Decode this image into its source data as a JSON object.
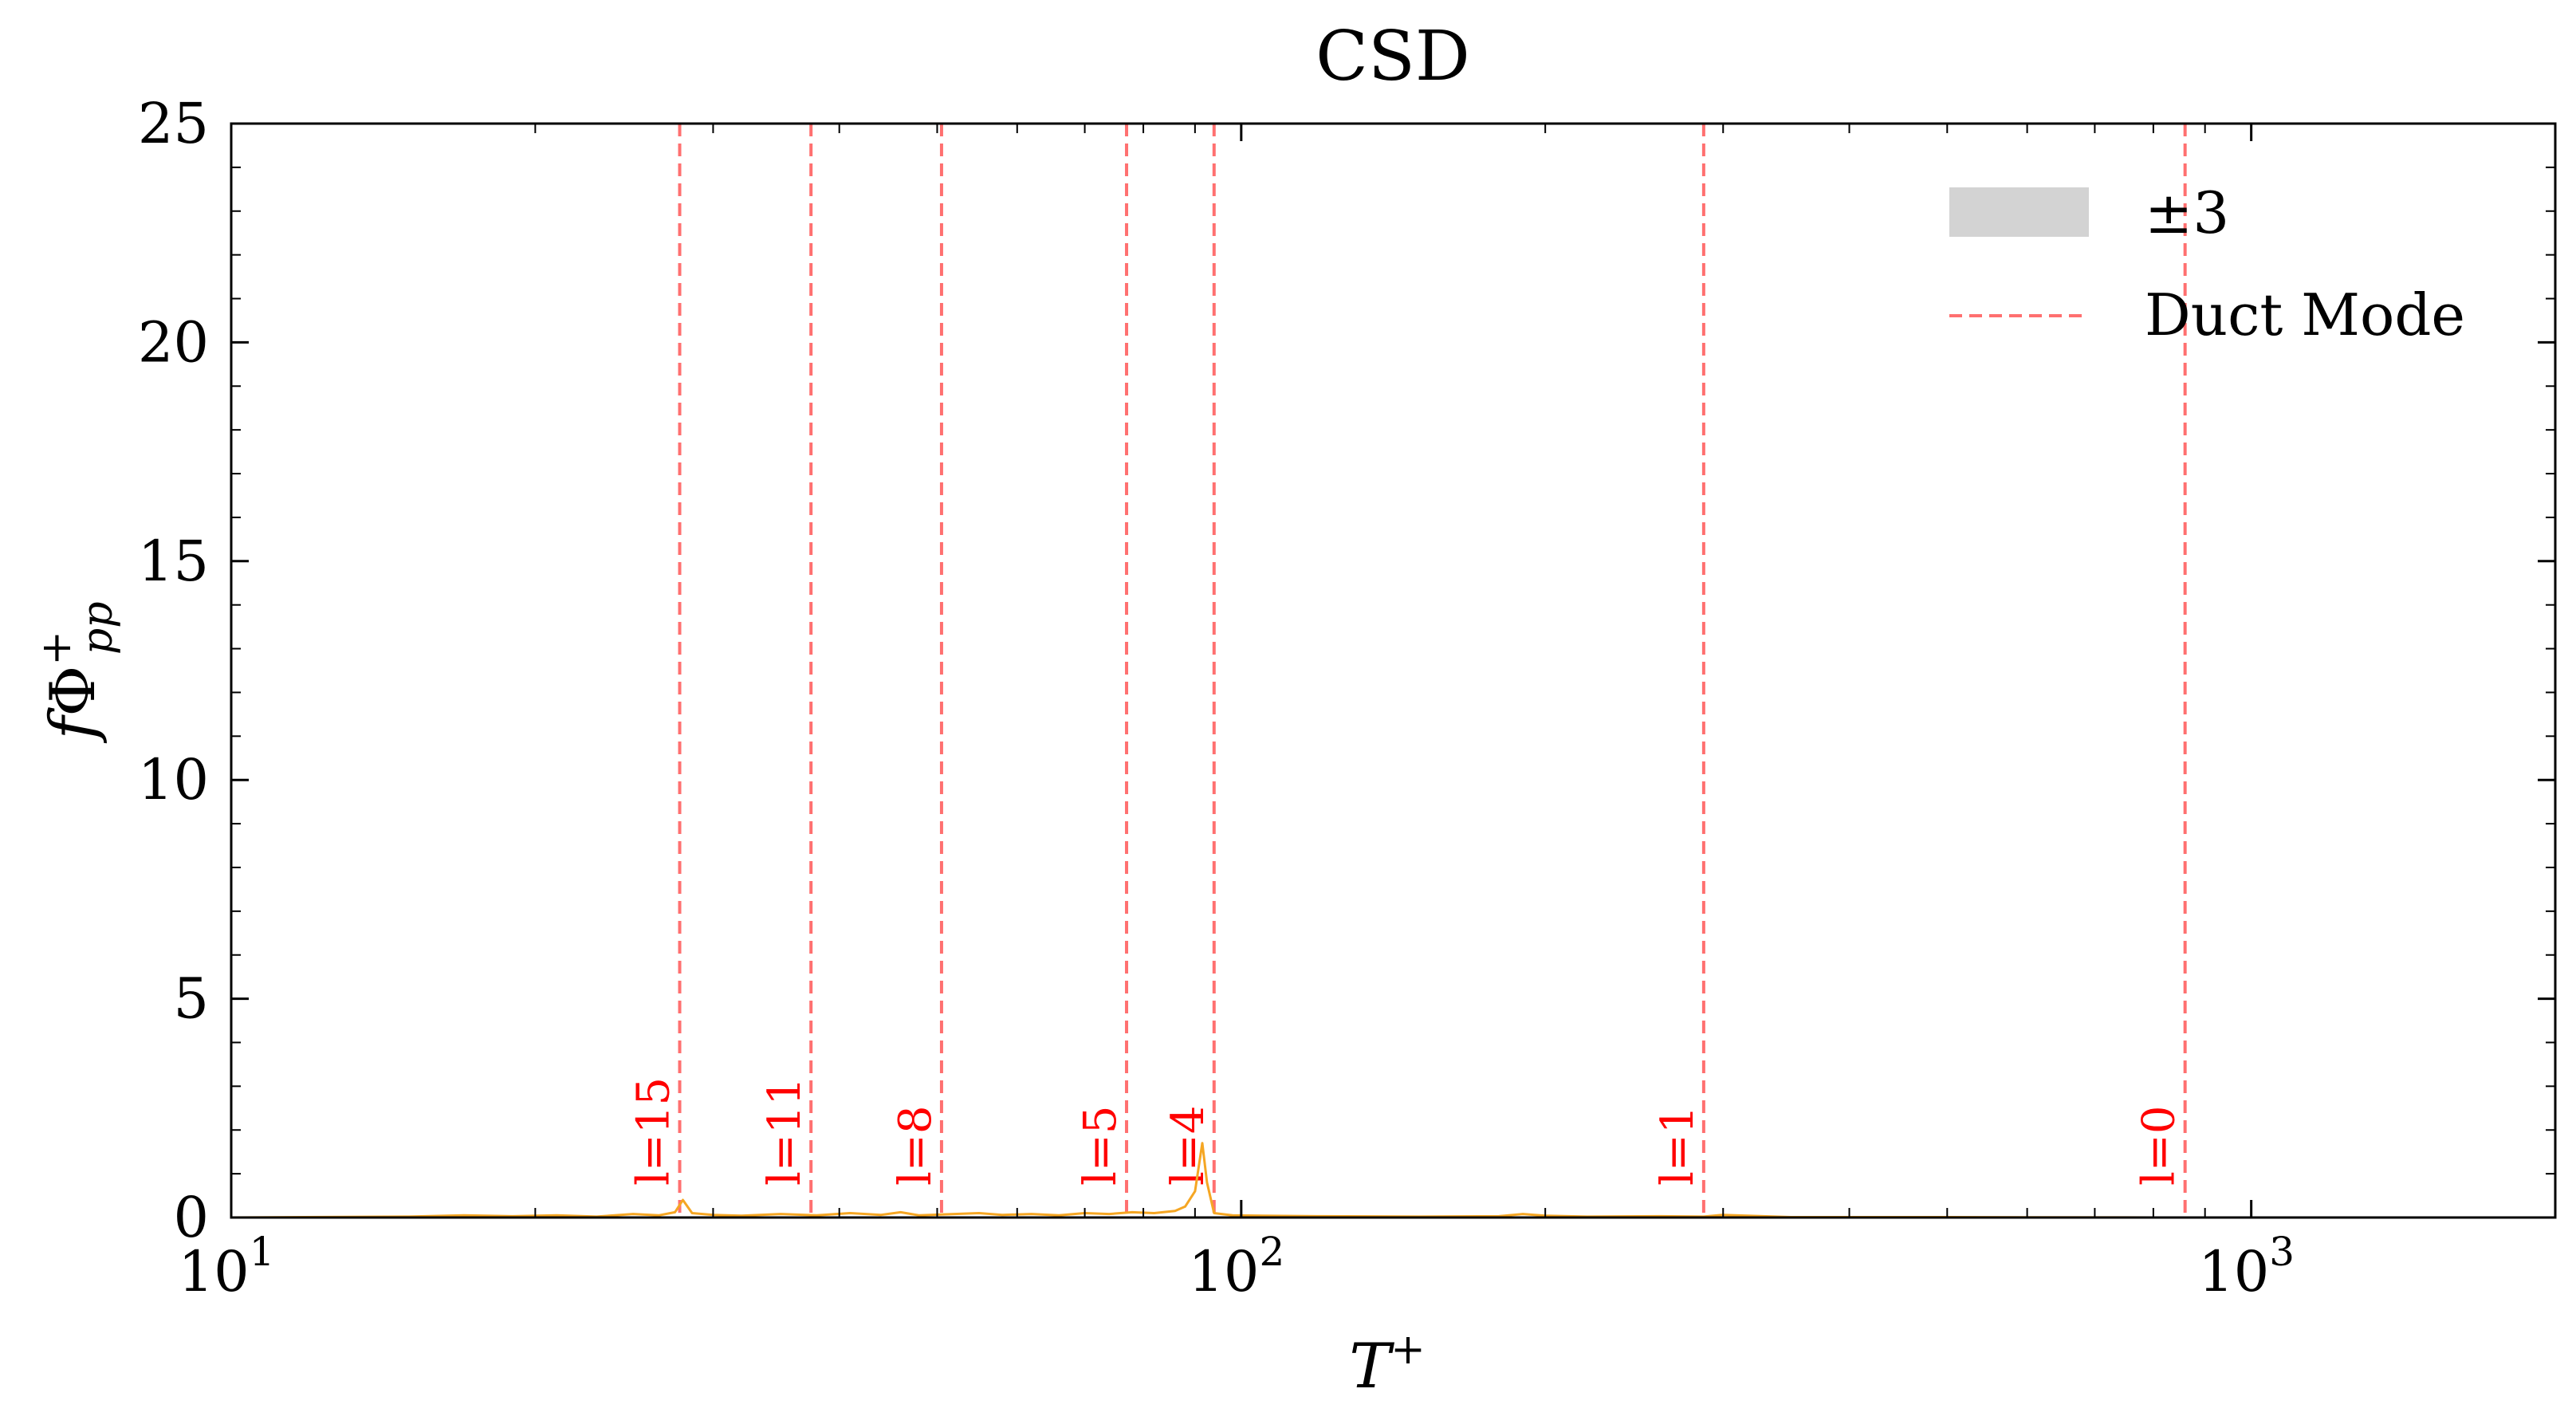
{
  "chart_data": {
    "type": "line",
    "title": "CSD",
    "xlabel": "T+",
    "ylabel": "fΦpp+",
    "xscale": "log",
    "xlim": [
      10,
      2000
    ],
    "ylim": [
      0,
      25
    ],
    "x_ticks": [
      {
        "value": 10,
        "base": "10",
        "exp": "1"
      },
      {
        "value": 100,
        "base": "10",
        "exp": "2"
      },
      {
        "value": 1000,
        "base": "10",
        "exp": "3"
      }
    ],
    "y_ticks": [
      0,
      5,
      10,
      15,
      20,
      25
    ],
    "grid": false,
    "legend": {
      "position": "top-right",
      "entries": [
        {
          "label": "±3",
          "kind": "band",
          "color": "#d3d3d3"
        },
        {
          "label": "Duct Mode",
          "kind": "dashed-line",
          "color": "#ff7070"
        }
      ]
    },
    "duct_modes": [
      {
        "label": "l=15",
        "x": 27.8
      },
      {
        "label": "l=11",
        "x": 37.5
      },
      {
        "label": "l=8",
        "x": 50.5
      },
      {
        "label": "l=5",
        "x": 77
      },
      {
        "label": "l=4",
        "x": 94
      },
      {
        "label": "l=1",
        "x": 287
      },
      {
        "label": "l=0",
        "x": 860
      }
    ],
    "series": [
      {
        "color": "#f5a623",
        "x": [
          10,
          15,
          17,
          19,
          21,
          23,
          25,
          26.5,
          27.5,
          28,
          28.6,
          30,
          32,
          35,
          38,
          41,
          44,
          46,
          48,
          52,
          55,
          58,
          62,
          66,
          70,
          74,
          78,
          82,
          86,
          88,
          90,
          91.5,
          92.5,
          94,
          98,
          105,
          120,
          150,
          180,
          190,
          200,
          220,
          260,
          287,
          300,
          350,
          500,
          800,
          1000,
          1500,
          2000
        ],
        "values": [
          0,
          0.02,
          0.05,
          0.03,
          0.05,
          0.02,
          0.08,
          0.05,
          0.12,
          0.4,
          0.1,
          0.06,
          0.04,
          0.08,
          0.05,
          0.1,
          0.06,
          0.12,
          0.05,
          0.08,
          0.1,
          0.06,
          0.08,
          0.05,
          0.1,
          0.08,
          0.12,
          0.1,
          0.15,
          0.25,
          0.6,
          1.7,
          0.8,
          0.1,
          0.05,
          0.04,
          0.03,
          0.02,
          0.03,
          0.08,
          0.04,
          0.02,
          0.03,
          0.02,
          0.06,
          0.01,
          0.01,
          0,
          0,
          0,
          0
        ]
      }
    ]
  }
}
